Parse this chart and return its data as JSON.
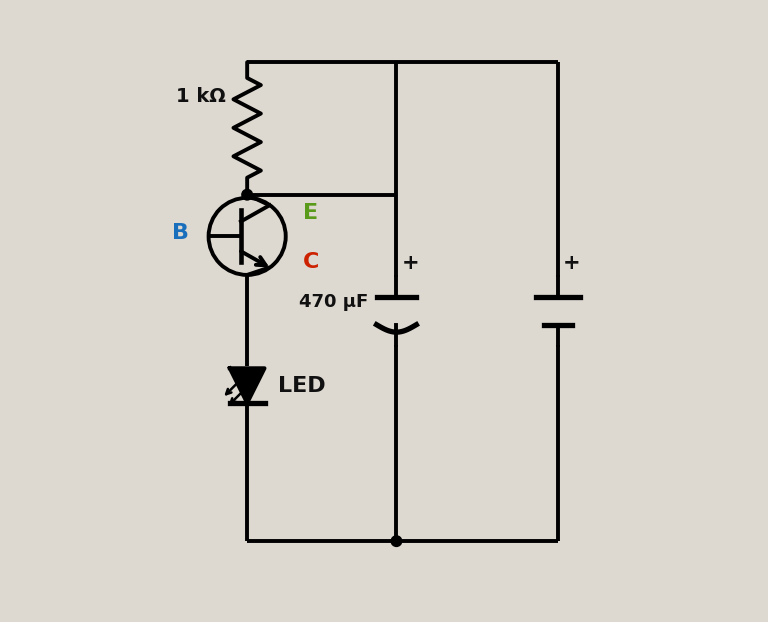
{
  "bg_color": "#ddd8d0",
  "line_color": "#000000",
  "line_width": 2.8,
  "resistor_label": "1 kΩ",
  "capacitor_label": "470 μF",
  "led_label": "LED",
  "B_label": "B",
  "E_label": "E",
  "C_label": "C",
  "B_color": "#1a6fbd",
  "E_color": "#5a9a1a",
  "C_color": "#cc2200",
  "led_color": "#111111",
  "junction_color": "#000000",
  "transistor_r": 0.62
}
